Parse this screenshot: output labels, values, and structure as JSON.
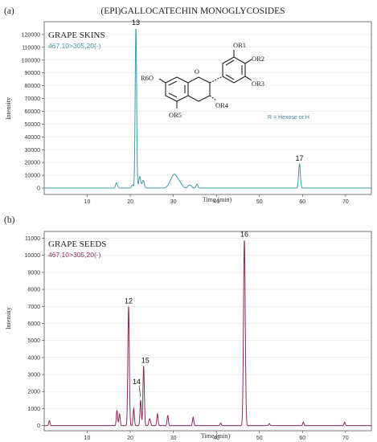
{
  "figure_title": "(EPI)GALLOCATECHIN MONOGLYCOSIDES",
  "structure": {
    "labels": [
      "OR1",
      "OR2",
      "OR3",
      "R6O",
      "OR4",
      "OR5"
    ],
    "note": "R = Hexose or H"
  },
  "chart_data": [
    {
      "panel": "(a)",
      "type": "line",
      "title": "GRAPE SKINS",
      "subtitle": "467,10>305,20(-)",
      "xlabel": "Time (min)",
      "ylabel": "Intensity",
      "xlim": [
        0,
        76
      ],
      "ylim": [
        -5000,
        130000
      ],
      "xticks": [
        10,
        20,
        30,
        40,
        50,
        60,
        70
      ],
      "yticks": [
        0,
        10000,
        20000,
        30000,
        40000,
        50000,
        60000,
        70000,
        80000,
        90000,
        100000,
        110000,
        120000
      ],
      "color": "#3d9aaa",
      "peaks": [
        {
          "x": 16.8,
          "y": 4000,
          "w": 0.22
        },
        {
          "x": 20.5,
          "y": 2500,
          "w": 0.2
        },
        {
          "x": 21.3,
          "y": 125000,
          "w": 0.17
        },
        {
          "x": 22.2,
          "y": 9000,
          "w": 0.22
        },
        {
          "x": 23.0,
          "y": 6000,
          "w": 0.25
        },
        {
          "x": 29.8,
          "y": 7000,
          "w": 0.7
        },
        {
          "x": 30.6,
          "y": 6000,
          "w": 0.6
        },
        {
          "x": 31.6,
          "y": 3000,
          "w": 0.5
        },
        {
          "x": 33.8,
          "y": 2500,
          "w": 0.4
        },
        {
          "x": 35.5,
          "y": 3000,
          "w": 0.2
        },
        {
          "x": 59.3,
          "y": 19000,
          "w": 0.2
        }
      ],
      "annotations": [
        {
          "label": "13",
          "x": 21.3,
          "y": 125000
        },
        {
          "label": "17",
          "x": 59.3,
          "y": 19000
        }
      ]
    },
    {
      "panel": "(b)",
      "type": "line",
      "title": "GRAPE SEEDS",
      "subtitle": "467,10>305,20(-)",
      "xlabel": "Time (min)",
      "ylabel": "Intensity",
      "xlim": [
        0,
        76
      ],
      "ylim": [
        -300,
        11400
      ],
      "xticks": [
        10,
        20,
        30,
        40,
        50,
        60,
        70
      ],
      "yticks": [
        0,
        1000,
        2000,
        3000,
        4000,
        5000,
        6000,
        7000,
        8000,
        9000,
        10000,
        11000
      ],
      "color": "#8b2a5c",
      "peaks": [
        {
          "x": 1.2,
          "y": 300,
          "w": 0.15
        },
        {
          "x": 16.9,
          "y": 900,
          "w": 0.15
        },
        {
          "x": 17.5,
          "y": 700,
          "w": 0.15
        },
        {
          "x": 19.6,
          "y": 7000,
          "w": 0.17
        },
        {
          "x": 20.8,
          "y": 1000,
          "w": 0.15
        },
        {
          "x": 22.4,
          "y": 1500,
          "w": 0.15
        },
        {
          "x": 23.1,
          "y": 3500,
          "w": 0.16
        },
        {
          "x": 24.5,
          "y": 400,
          "w": 0.2
        },
        {
          "x": 26.3,
          "y": 700,
          "w": 0.15
        },
        {
          "x": 28.7,
          "y": 600,
          "w": 0.15
        },
        {
          "x": 34.6,
          "y": 500,
          "w": 0.15
        },
        {
          "x": 41.0,
          "y": 150,
          "w": 0.15
        },
        {
          "x": 46.5,
          "y": 10900,
          "w": 0.2
        },
        {
          "x": 52.3,
          "y": 120,
          "w": 0.15
        },
        {
          "x": 60.2,
          "y": 200,
          "w": 0.15
        },
        {
          "x": 69.8,
          "y": 200,
          "w": 0.15
        }
      ],
      "annotations": [
        {
          "label": "12",
          "x": 19.6,
          "y": 7000
        },
        {
          "label": "14",
          "x": 22.4,
          "y": 1500
        },
        {
          "label": "15",
          "x": 23.1,
          "y": 3500
        },
        {
          "label": "16",
          "x": 46.5,
          "y": 10900
        }
      ]
    }
  ]
}
